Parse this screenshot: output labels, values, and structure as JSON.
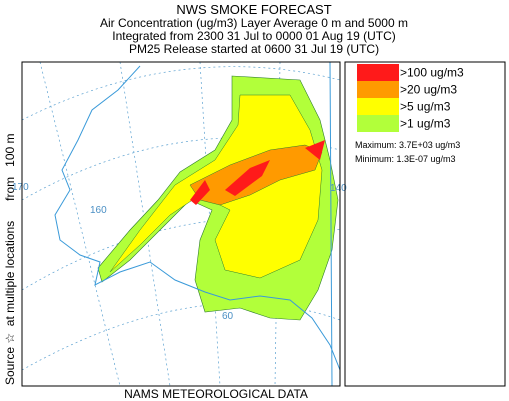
{
  "header": {
    "title": "NWS SMOKE FORECAST",
    "lines": [
      "Air Concentration (ug/m3) Layer Average    0 m and  5000 m",
      "Integrated from 2300 31 Jul to 0000 01 Aug 19 (UTC)",
      "PM25 Release started at 0600 31 Jul 19 (UTC)"
    ]
  },
  "side_label": "Source ☆  at multiple locations      from   100 m",
  "footer": "NAMS METEOROLOGICAL DATA",
  "legend": {
    "items": [
      {
        "label": ">100 ug/m3",
        "color": "#ff1a1a"
      },
      {
        "label": ">20 ug/m3",
        "color": "#ff9a00"
      },
      {
        "label": ">5 ug/m3",
        "color": "#ffff00"
      },
      {
        "label": ">1 ug/m3",
        "color": "#b2ff3a"
      }
    ],
    "stats": [
      "Maximum: 3.7E+03 ug/m3",
      "Minimum: 1.3E-07 ug/m3"
    ]
  },
  "map": {
    "grid_labels": [
      "170",
      "160",
      "60",
      "140"
    ]
  }
}
